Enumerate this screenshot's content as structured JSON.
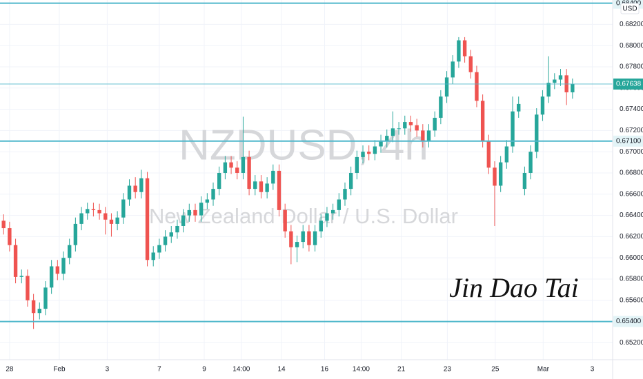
{
  "chart_data": {
    "type": "candlestick",
    "watermark": "NZDUSD, 4h",
    "subtitle": "New Zealand Dollar / U.S. Dollar",
    "signature": "Jin Dao Tai",
    "currency": "USD",
    "up_color": "#26a69a",
    "down_color": "#ef5350",
    "level_color": "#4fb7cb",
    "grid": true,
    "xlim": [
      -0.6,
      101.7
    ],
    "ylim": [
      0.6504,
      0.6843
    ],
    "xticks": [
      {
        "value": 1.0,
        "label": "28"
      },
      {
        "value": 9.3,
        "label": "Feb"
      },
      {
        "value": 17.3,
        "label": "3"
      },
      {
        "value": 26.0,
        "label": "7"
      },
      {
        "value": 33.5,
        "label": "9"
      },
      {
        "value": 39.7,
        "label": "14:00"
      },
      {
        "value": 46.4,
        "label": "14"
      },
      {
        "value": 53.6,
        "label": "16"
      },
      {
        "value": 59.7,
        "label": "14:00"
      },
      {
        "value": 66.4,
        "label": "21"
      },
      {
        "value": 74.1,
        "label": "23"
      },
      {
        "value": 82.1,
        "label": "25"
      },
      {
        "value": 90.1,
        "label": "Mar"
      },
      {
        "value": 98.3,
        "label": "3"
      }
    ],
    "yticks": [
      {
        "value": 0.652,
        "label": "0.65200"
      },
      {
        "value": 0.654,
        "label": "0.65400"
      },
      {
        "value": 0.656,
        "label": "0.65600"
      },
      {
        "value": 0.658,
        "label": "0.65800"
      },
      {
        "value": 0.66,
        "label": "0.66000"
      },
      {
        "value": 0.662,
        "label": "0.66200"
      },
      {
        "value": 0.664,
        "label": "0.66400"
      },
      {
        "value": 0.666,
        "label": "0.66600"
      },
      {
        "value": 0.668,
        "label": "0.66800"
      },
      {
        "value": 0.67,
        "label": "0.67000"
      },
      {
        "value": 0.672,
        "label": "0.67200"
      },
      {
        "value": 0.674,
        "label": "0.67400"
      },
      {
        "value": 0.676,
        "label": "0.67600"
      },
      {
        "value": 0.678,
        "label": "0.67800"
      },
      {
        "value": 0.68,
        "label": "0.68000"
      },
      {
        "value": 0.682,
        "label": "0.68200"
      }
    ],
    "levels": [
      {
        "value": 0.684,
        "label": "0.68400"
      },
      {
        "value": 0.671,
        "label": "0.67100"
      },
      {
        "value": 0.654,
        "label": "0.65400"
      }
    ],
    "last_price_label": "0.67638",
    "open": [
      0.6635,
      0.6628,
      0.6612,
      0.6582,
      0.6583,
      0.656,
      0.6548,
      0.6552,
      0.6572,
      0.6592,
      0.6585,
      0.66,
      0.6612,
      0.6632,
      0.6642,
      0.6646,
      0.6645,
      0.6642,
      0.6636,
      0.6632,
      0.6638,
      0.6655,
      0.6668,
      0.6662,
      0.6675,
      0.6598,
      0.6605,
      0.6612,
      0.662,
      0.6624,
      0.663,
      0.664,
      0.6645,
      0.664,
      0.6652,
      0.6655,
      0.6665,
      0.668,
      0.669,
      0.6685,
      0.668,
      0.6695,
      0.6665,
      0.6672,
      0.6662,
      0.667,
      0.6682,
      0.6645,
      0.6625,
      0.661,
      0.6615,
      0.6625,
      0.6612,
      0.6625,
      0.6635,
      0.6642,
      0.6645,
      0.6655,
      0.6665,
      0.668,
      0.6695,
      0.67,
      0.6698,
      0.6705,
      0.671,
      0.6715,
      0.6722,
      0.6722,
      0.6728,
      0.6725,
      0.672,
      0.671,
      0.672,
      0.6732,
      0.6752,
      0.677,
      0.6785,
      0.6805,
      0.679,
      0.6775,
      0.6748,
      0.671,
      0.6685,
      0.6668,
      0.669,
      0.6705,
      0.6738,
      0.6665,
      0.668,
      0.67,
      0.6735,
      0.6752,
      0.6765,
      0.6768,
      0.6772,
      0.6756
    ],
    "high": [
      0.6641,
      0.6634,
      0.6618,
      0.6589,
      0.6589,
      0.6566,
      0.6558,
      0.6578,
      0.6598,
      0.6598,
      0.6606,
      0.6618,
      0.6638,
      0.6648,
      0.6652,
      0.6652,
      0.6651,
      0.6648,
      0.6642,
      0.6644,
      0.6661,
      0.6674,
      0.6676,
      0.6683,
      0.6681,
      0.6611,
      0.6618,
      0.6626,
      0.663,
      0.6636,
      0.6646,
      0.6651,
      0.6651,
      0.6658,
      0.6661,
      0.6671,
      0.6686,
      0.6696,
      0.6696,
      0.6691,
      0.6733,
      0.6701,
      0.6678,
      0.6678,
      0.6676,
      0.6688,
      0.6688,
      0.6651,
      0.6631,
      0.6621,
      0.6631,
      0.6631,
      0.6631,
      0.6641,
      0.6648,
      0.6651,
      0.6661,
      0.6671,
      0.6686,
      0.6701,
      0.6706,
      0.6706,
      0.6711,
      0.6716,
      0.6721,
      0.6738,
      0.6728,
      0.6734,
      0.6734,
      0.6731,
      0.6726,
      0.6726,
      0.6738,
      0.6758,
      0.6776,
      0.6791,
      0.6808,
      0.6808,
      0.6796,
      0.6781,
      0.6754,
      0.6716,
      0.6691,
      0.6696,
      0.6711,
      0.6752,
      0.6752,
      0.6686,
      0.6706,
      0.6741,
      0.6758,
      0.679,
      0.6774,
      0.6778,
      0.6778,
      0.6769
    ],
    "low": [
      0.6622,
      0.6606,
      0.6576,
      0.6576,
      0.6554,
      0.6533,
      0.6542,
      0.6546,
      0.6566,
      0.6579,
      0.6579,
      0.6594,
      0.6606,
      0.6626,
      0.6636,
      0.6639,
      0.6636,
      0.6622,
      0.662,
      0.6626,
      0.6632,
      0.6649,
      0.6656,
      0.6656,
      0.6592,
      0.6592,
      0.6599,
      0.6606,
      0.6614,
      0.6618,
      0.6624,
      0.6634,
      0.6634,
      0.6634,
      0.6646,
      0.6649,
      0.6659,
      0.6674,
      0.6679,
      0.6674,
      0.6674,
      0.6659,
      0.6659,
      0.6656,
      0.6656,
      0.6664,
      0.6639,
      0.6619,
      0.6594,
      0.6596,
      0.6609,
      0.6606,
      0.6606,
      0.6619,
      0.6629,
      0.6636,
      0.6639,
      0.6649,
      0.6659,
      0.6674,
      0.6689,
      0.6692,
      0.6692,
      0.6699,
      0.6704,
      0.6709,
      0.6716,
      0.6716,
      0.6719,
      0.6714,
      0.6704,
      0.6704,
      0.6714,
      0.6726,
      0.6746,
      0.6764,
      0.6779,
      0.6784,
      0.6769,
      0.6742,
      0.6704,
      0.6679,
      0.663,
      0.6662,
      0.6684,
      0.6699,
      0.6732,
      0.6659,
      0.6674,
      0.6694,
      0.6729,
      0.6746,
      0.6759,
      0.6762,
      0.6744,
      0.675
    ],
    "close": [
      0.6628,
      0.6612,
      0.6582,
      0.6583,
      0.656,
      0.6548,
      0.6552,
      0.6572,
      0.6592,
      0.6585,
      0.66,
      0.6612,
      0.6632,
      0.6642,
      0.6646,
      0.6645,
      0.6642,
      0.6636,
      0.6632,
      0.6638,
      0.6655,
      0.6668,
      0.6662,
      0.6675,
      0.6598,
      0.6605,
      0.6612,
      0.662,
      0.6624,
      0.663,
      0.664,
      0.6645,
      0.664,
      0.6652,
      0.6655,
      0.6665,
      0.668,
      0.669,
      0.6685,
      0.668,
      0.6695,
      0.6665,
      0.6672,
      0.6662,
      0.667,
      0.6682,
      0.6645,
      0.6625,
      0.661,
      0.6615,
      0.6625,
      0.6612,
      0.6625,
      0.6635,
      0.6642,
      0.6645,
      0.6655,
      0.6665,
      0.668,
      0.6695,
      0.67,
      0.6698,
      0.6705,
      0.671,
      0.6715,
      0.6722,
      0.6722,
      0.6728,
      0.6725,
      0.672,
      0.671,
      0.672,
      0.6732,
      0.6752,
      0.677,
      0.6785,
      0.6805,
      0.679,
      0.6775,
      0.6748,
      0.671,
      0.6685,
      0.6668,
      0.669,
      0.6705,
      0.6738,
      0.6745,
      0.668,
      0.67,
      0.6735,
      0.6752,
      0.6765,
      0.6768,
      0.6772,
      0.6756,
      0.67638
    ]
  }
}
